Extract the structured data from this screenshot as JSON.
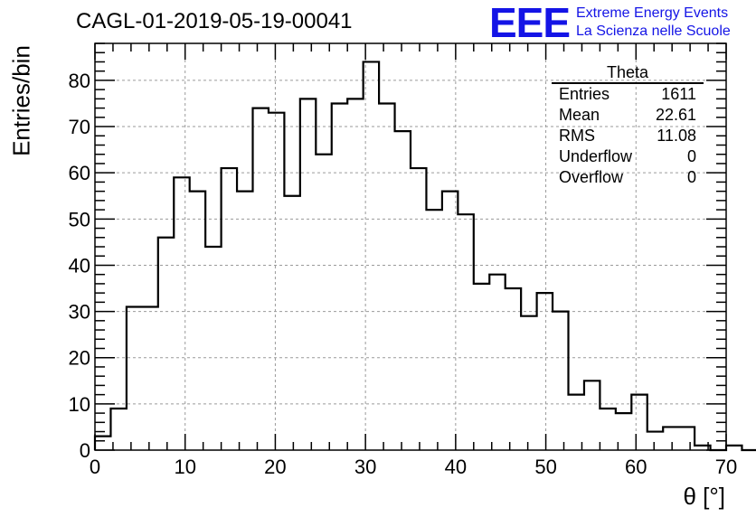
{
  "title": "CAGL-01-2019-05-19-00041",
  "logo": {
    "text": "EEE",
    "line1": "Extreme Energy Events",
    "line2": "La Scienza nelle Scuole",
    "color": "#1414e6"
  },
  "stats": {
    "name": "Theta",
    "rows": [
      {
        "label": "Entries",
        "value": "1611"
      },
      {
        "label": "Mean",
        "value": "22.61"
      },
      {
        "label": "RMS",
        "value": "11.08"
      },
      {
        "label": "Underflow",
        "value": "0"
      },
      {
        "label": "Overflow",
        "value": "0"
      }
    ]
  },
  "chart_data": {
    "type": "bar",
    "style": "step-histogram",
    "title": "CAGL-01-2019-05-19-00041",
    "xlabel": "θ [°]",
    "ylabel": "Entries/bin",
    "xlim": [
      0,
      70
    ],
    "ylim": [
      0,
      88
    ],
    "grid": true,
    "bin_width": 1.75,
    "bin_edges_start": 0,
    "xticks": [
      0,
      10,
      20,
      30,
      40,
      50,
      60,
      70
    ],
    "yticks": [
      0,
      10,
      20,
      30,
      40,
      50,
      60,
      70,
      80
    ],
    "values": [
      3,
      9,
      31,
      31,
      46,
      59,
      56,
      44,
      61,
      56,
      74,
      73,
      55,
      76,
      64,
      75,
      76,
      84,
      75,
      69,
      61,
      52,
      56,
      51,
      36,
      38,
      35,
      29,
      34,
      30,
      12,
      15,
      9,
      8,
      12,
      4,
      5,
      5,
      1,
      0,
      1,
      0,
      0,
      0,
      0,
      0,
      0,
      0,
      0,
      0
    ]
  }
}
